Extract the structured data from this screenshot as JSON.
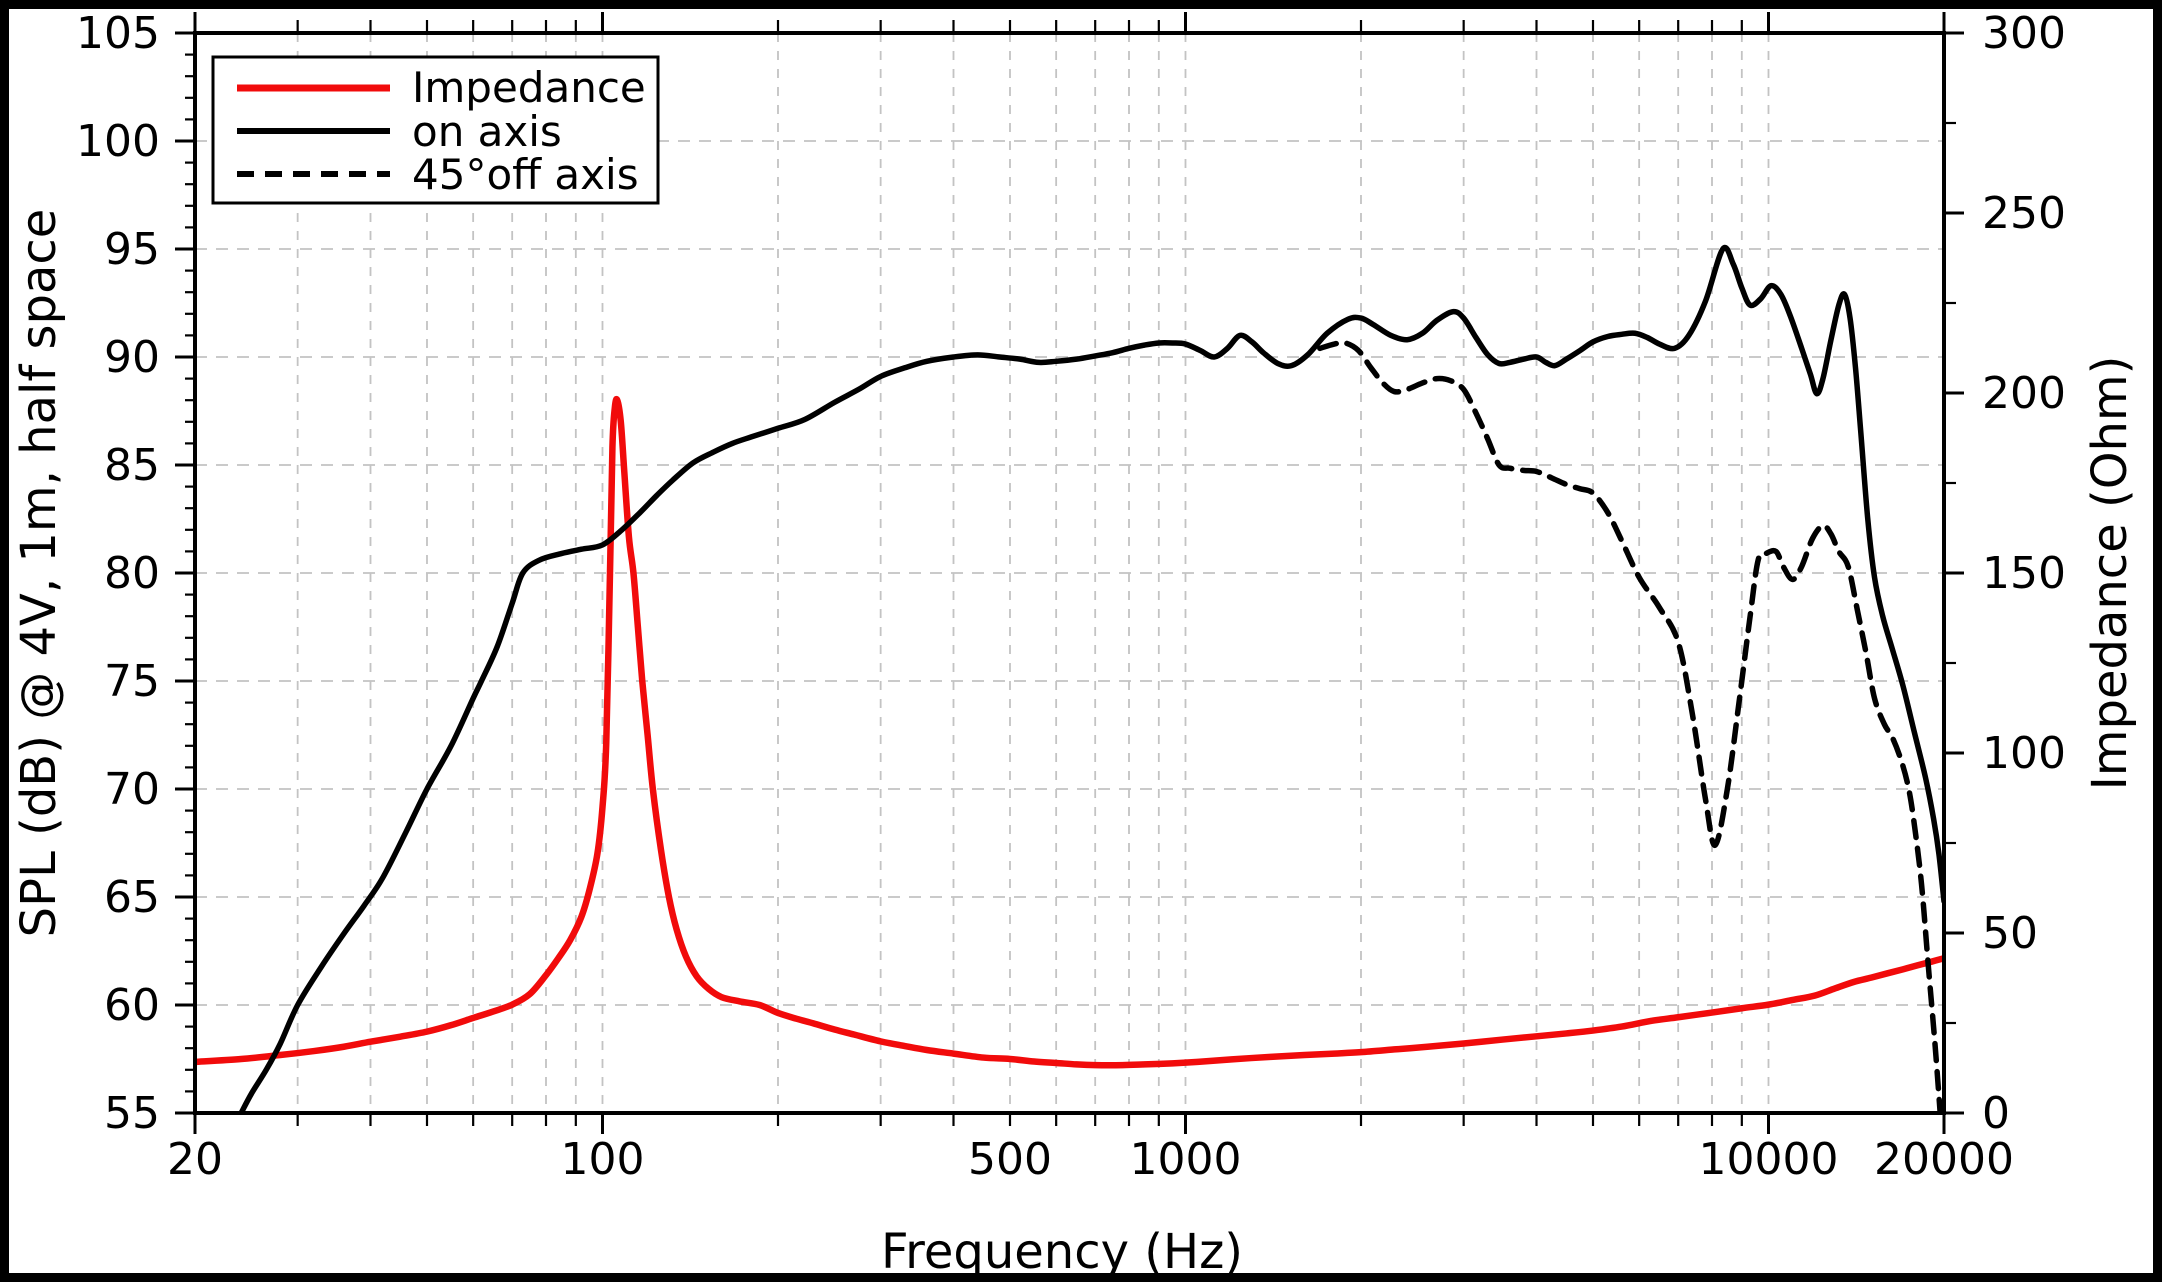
{
  "chart_data": {
    "type": "line",
    "title": "",
    "xlabel": "Frequency (Hz)",
    "ylabel_left": "SPL (dB) @ 4V, 1m, half space",
    "ylabel_right": "Impedance (Ohm)",
    "x_scale": "log",
    "x_range": [
      20,
      20000
    ],
    "y_left_range": [
      55,
      105
    ],
    "y_left_major_step": 5,
    "y_left_minor_step": 1,
    "y_right_range": [
      0,
      300
    ],
    "y_right_major_step": 50,
    "y_right_minor_step": 25,
    "grid": {
      "on": true,
      "horizontal_at_left_values": [
        60,
        65,
        70,
        75,
        80,
        85,
        90,
        95,
        100
      ],
      "vertical_at_log_minors": true,
      "color": "#c3c3c3"
    },
    "x_tick_labels": [
      {
        "value": 20,
        "label": "20"
      },
      {
        "value": 100,
        "label": "100"
      },
      {
        "value": 500,
        "label": "500"
      },
      {
        "value": 1000,
        "label": "1000"
      },
      {
        "value": 10000,
        "label": "10000"
      },
      {
        "value": 20000,
        "label": "20000"
      }
    ],
    "y_left_tick_labels": [
      "55",
      "60",
      "65",
      "70",
      "75",
      "80",
      "85",
      "90",
      "95",
      "100",
      "105"
    ],
    "y_right_tick_labels": [
      "0",
      "50",
      "100",
      "150",
      "200",
      "250",
      "300"
    ],
    "legend": {
      "position": "top-left",
      "entries": [
        {
          "label": "Impedance",
          "color": "#f10b0b",
          "style": "solid"
        },
        {
          "label": "on axis",
          "color": "#000000",
          "style": "solid"
        },
        {
          "label": "45°off axis",
          "color": "#000000",
          "style": "dashed"
        }
      ]
    },
    "series": [
      {
        "name": "Impedance",
        "axis": "right",
        "unit": "Ohm",
        "color": "#f10b0b",
        "style": "solid",
        "points": [
          [
            20,
            14.2
          ],
          [
            24,
            15.0
          ],
          [
            28,
            16.1
          ],
          [
            32,
            17.2
          ],
          [
            36,
            18.4
          ],
          [
            40,
            19.8
          ],
          [
            45,
            21.2
          ],
          [
            50,
            22.6
          ],
          [
            55,
            24.4
          ],
          [
            60,
            26.4
          ],
          [
            65,
            28.2
          ],
          [
            70,
            30.1
          ],
          [
            75,
            33.0
          ],
          [
            80,
            38.3
          ],
          [
            84,
            43
          ],
          [
            88,
            48
          ],
          [
            92,
            54.5
          ],
          [
            95,
            62
          ],
          [
            98,
            72
          ],
          [
            100,
            85
          ],
          [
            101.5,
            103
          ],
          [
            103,
            150
          ],
          [
            104,
            185
          ],
          [
            105,
            196
          ],
          [
            106,
            198
          ],
          [
            107.5,
            192
          ],
          [
            109,
            178
          ],
          [
            111,
            160
          ],
          [
            113,
            150
          ],
          [
            115,
            135
          ],
          [
            117,
            120
          ],
          [
            119.5,
            105
          ],
          [
            122,
            90
          ],
          [
            126,
            73
          ],
          [
            130,
            60
          ],
          [
            134,
            51
          ],
          [
            139,
            43.5
          ],
          [
            145,
            38
          ],
          [
            152,
            34.5
          ],
          [
            160,
            32.2
          ],
          [
            172,
            31
          ],
          [
            186,
            30
          ],
          [
            200,
            27.8
          ],
          [
            215,
            26.2
          ],
          [
            230,
            24.9
          ],
          [
            250,
            23.2
          ],
          [
            270,
            21.8
          ],
          [
            300,
            19.9
          ],
          [
            330,
            18.6
          ],
          [
            360,
            17.5
          ],
          [
            400,
            16.5
          ],
          [
            450,
            15.4
          ],
          [
            500,
            15.0
          ],
          [
            550,
            14.3
          ],
          [
            600,
            13.9
          ],
          [
            650,
            13.5
          ],
          [
            700,
            13.3
          ],
          [
            780,
            13.3
          ],
          [
            850,
            13.5
          ],
          [
            950,
            13.8
          ],
          [
            1050,
            14.2
          ],
          [
            1200,
            14.9
          ],
          [
            1400,
            15.6
          ],
          [
            1600,
            16.1
          ],
          [
            1800,
            16.5
          ],
          [
            2000,
            16.9
          ],
          [
            2300,
            17.7
          ],
          [
            2600,
            18.4
          ],
          [
            3000,
            19.3
          ],
          [
            3500,
            20.4
          ],
          [
            4000,
            21.3
          ],
          [
            4500,
            22.1
          ],
          [
            5000,
            22.9
          ],
          [
            5600,
            24.0
          ],
          [
            6300,
            25.6
          ],
          [
            7000,
            26.6
          ],
          [
            8000,
            27.9
          ],
          [
            9000,
            29.1
          ],
          [
            10000,
            30.1
          ],
          [
            11000,
            31.4
          ],
          [
            12000,
            32.6
          ],
          [
            13000,
            34.6
          ],
          [
            14000,
            36.4
          ],
          [
            15000,
            37.6
          ],
          [
            16000,
            38.8
          ],
          [
            17000,
            39.9
          ],
          [
            18000,
            41.0
          ],
          [
            19000,
            42.0
          ],
          [
            20000,
            43.0
          ]
        ]
      },
      {
        "name": "on axis",
        "axis": "left",
        "unit": "dB",
        "color": "#000000",
        "style": "solid",
        "points": [
          [
            24,
            55
          ],
          [
            25,
            55.9
          ],
          [
            26.5,
            57
          ],
          [
            28,
            58.2
          ],
          [
            30,
            60
          ],
          [
            33,
            61.8
          ],
          [
            36,
            63.3
          ],
          [
            39,
            64.6
          ],
          [
            42,
            65.9
          ],
          [
            46,
            68
          ],
          [
            50,
            70
          ],
          [
            55,
            72
          ],
          [
            60,
            74.2
          ],
          [
            62,
            75
          ],
          [
            66,
            76.6
          ],
          [
            70,
            78.6
          ],
          [
            73,
            80
          ],
          [
            78,
            80.6
          ],
          [
            85,
            80.9
          ],
          [
            92,
            81.1
          ],
          [
            100,
            81.3
          ],
          [
            108,
            82
          ],
          [
            116,
            82.8
          ],
          [
            124,
            83.6
          ],
          [
            132,
            84.3
          ],
          [
            143,
            85.1
          ],
          [
            155,
            85.6
          ],
          [
            167,
            86
          ],
          [
            180,
            86.3
          ],
          [
            200,
            86.7
          ],
          [
            222,
            87.1
          ],
          [
            250,
            87.9
          ],
          [
            275,
            88.5
          ],
          [
            300,
            89.1
          ],
          [
            330,
            89.5
          ],
          [
            360,
            89.8
          ],
          [
            400,
            90.0
          ],
          [
            440,
            90.1
          ],
          [
            480,
            90.0
          ],
          [
            520,
            89.9
          ],
          [
            560,
            89.75
          ],
          [
            600,
            89.8
          ],
          [
            650,
            89.9
          ],
          [
            700,
            90.05
          ],
          [
            750,
            90.2
          ],
          [
            800,
            90.4
          ],
          [
            850,
            90.55
          ],
          [
            900,
            90.65
          ],
          [
            950,
            90.65
          ],
          [
            1000,
            90.6
          ],
          [
            1060,
            90.3
          ],
          [
            1120,
            90.0
          ],
          [
            1180,
            90.4
          ],
          [
            1240,
            91.0
          ],
          [
            1300,
            90.7
          ],
          [
            1360,
            90.2
          ],
          [
            1440,
            89.7
          ],
          [
            1520,
            89.6
          ],
          [
            1620,
            90.1
          ],
          [
            1750,
            91.1
          ],
          [
            1900,
            91.75
          ],
          [
            2000,
            91.8
          ],
          [
            2100,
            91.5
          ],
          [
            2250,
            91.0
          ],
          [
            2400,
            90.8
          ],
          [
            2550,
            91.1
          ],
          [
            2700,
            91.7
          ],
          [
            2880,
            92.1
          ],
          [
            3000,
            91.8
          ],
          [
            3150,
            90.9
          ],
          [
            3300,
            90.1
          ],
          [
            3450,
            89.7
          ],
          [
            3600,
            89.75
          ],
          [
            3800,
            89.9
          ],
          [
            4000,
            90.0
          ],
          [
            4150,
            89.75
          ],
          [
            4300,
            89.6
          ],
          [
            4500,
            89.9
          ],
          [
            4750,
            90.3
          ],
          [
            5000,
            90.7
          ],
          [
            5300,
            90.95
          ],
          [
            5600,
            91.05
          ],
          [
            5900,
            91.1
          ],
          [
            6200,
            90.9
          ],
          [
            6500,
            90.6
          ],
          [
            6900,
            90.4
          ],
          [
            7300,
            91.0
          ],
          [
            7800,
            92.6
          ],
          [
            8350,
            95.0
          ],
          [
            8700,
            94.3
          ],
          [
            9000,
            93.2
          ],
          [
            9300,
            92.4
          ],
          [
            9700,
            92.7
          ],
          [
            10100,
            93.3
          ],
          [
            10500,
            92.9
          ],
          [
            10900,
            91.9
          ],
          [
            11400,
            90.4
          ],
          [
            11800,
            89.2
          ],
          [
            12100,
            88.3
          ],
          [
            12400,
            89.0
          ],
          [
            12800,
            90.8
          ],
          [
            13200,
            92.4
          ],
          [
            13500,
            92.9
          ],
          [
            13800,
            91.8
          ],
          [
            14100,
            89.5
          ],
          [
            14400,
            86.5
          ],
          [
            14800,
            82.5
          ],
          [
            15200,
            79.8
          ],
          [
            15700,
            78.0
          ],
          [
            16300,
            76.5
          ],
          [
            17000,
            74.8
          ],
          [
            17800,
            72.6
          ],
          [
            18600,
            70.5
          ],
          [
            19200,
            68.6
          ],
          [
            19600,
            67.0
          ],
          [
            20000,
            64.8
          ]
        ]
      },
      {
        "name": "45°off axis",
        "axis": "left",
        "unit": "dB",
        "color": "#000000",
        "style": "dashed",
        "points": [
          [
            1700,
            90.4
          ],
          [
            1800,
            90.6
          ],
          [
            1880,
            90.65
          ],
          [
            1980,
            90.3
          ],
          [
            2080,
            89.5
          ],
          [
            2180,
            88.8
          ],
          [
            2280,
            88.4
          ],
          [
            2400,
            88.5
          ],
          [
            2550,
            88.8
          ],
          [
            2700,
            89.0
          ],
          [
            2850,
            88.9
          ],
          [
            3000,
            88.5
          ],
          [
            3150,
            87.4
          ],
          [
            3300,
            86.2
          ],
          [
            3450,
            85.0
          ],
          [
            3600,
            84.85
          ],
          [
            3800,
            84.75
          ],
          [
            4000,
            84.7
          ],
          [
            4250,
            84.4
          ],
          [
            4500,
            84.1
          ],
          [
            4750,
            83.9
          ],
          [
            5000,
            83.7
          ],
          [
            5300,
            82.8
          ],
          [
            5600,
            81.5
          ],
          [
            6000,
            79.8
          ],
          [
            6500,
            78.4
          ],
          [
            7000,
            76.8
          ],
          [
            7400,
            73.5
          ],
          [
            7800,
            69.5
          ],
          [
            8100,
            67.4
          ],
          [
            8500,
            70.0
          ],
          [
            8900,
            74.0
          ],
          [
            9300,
            78.0
          ],
          [
            9600,
            80.6
          ],
          [
            9900,
            80.9
          ],
          [
            10300,
            81.0
          ],
          [
            10600,
            80.3
          ],
          [
            11000,
            79.7
          ],
          [
            11400,
            80.3
          ],
          [
            11900,
            81.6
          ],
          [
            12400,
            82.2
          ],
          [
            12800,
            81.8
          ],
          [
            13200,
            81.0
          ],
          [
            13700,
            80.3
          ],
          [
            14200,
            78.3
          ],
          [
            14700,
            76.3
          ],
          [
            15200,
            74.2
          ],
          [
            15800,
            73.0
          ],
          [
            16300,
            72.4
          ],
          [
            16900,
            71.3
          ],
          [
            17400,
            70.0
          ],
          [
            17800,
            68.3
          ],
          [
            18300,
            65.6
          ],
          [
            18800,
            61.8
          ],
          [
            19300,
            58.2
          ],
          [
            19700,
            55.0
          ]
        ]
      }
    ]
  },
  "colors": {
    "background": "#ffffff",
    "frame_border": "#000000",
    "axis": "#000000",
    "grid": "#c3c3c3",
    "impedance_red": "#f10b0b"
  }
}
